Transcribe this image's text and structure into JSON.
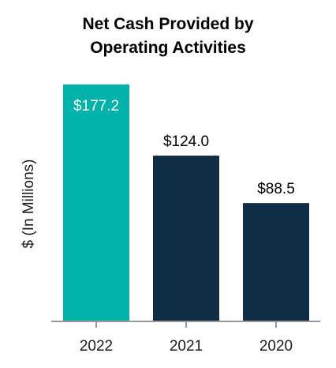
{
  "chart_data": {
    "type": "bar",
    "title": [
      "Net Cash Provided by",
      "Operating Activities"
    ],
    "ylabel": "$ (In Millions)",
    "xlabel": "",
    "categories": [
      "2022",
      "2021",
      "2020"
    ],
    "values": [
      177.2,
      124.0,
      88.5
    ],
    "value_labels": [
      "$177.2",
      "$124.0",
      "$88.5"
    ],
    "ylim": [
      0,
      177.2
    ],
    "grid": false,
    "legend": "none",
    "colors": {
      "highlight": "#00b2a9",
      "default": "#0f2d45",
      "axis": "#999999",
      "label_inside": "#ffffff",
      "label_outside": "#000000"
    },
    "highlight_index": 0
  }
}
